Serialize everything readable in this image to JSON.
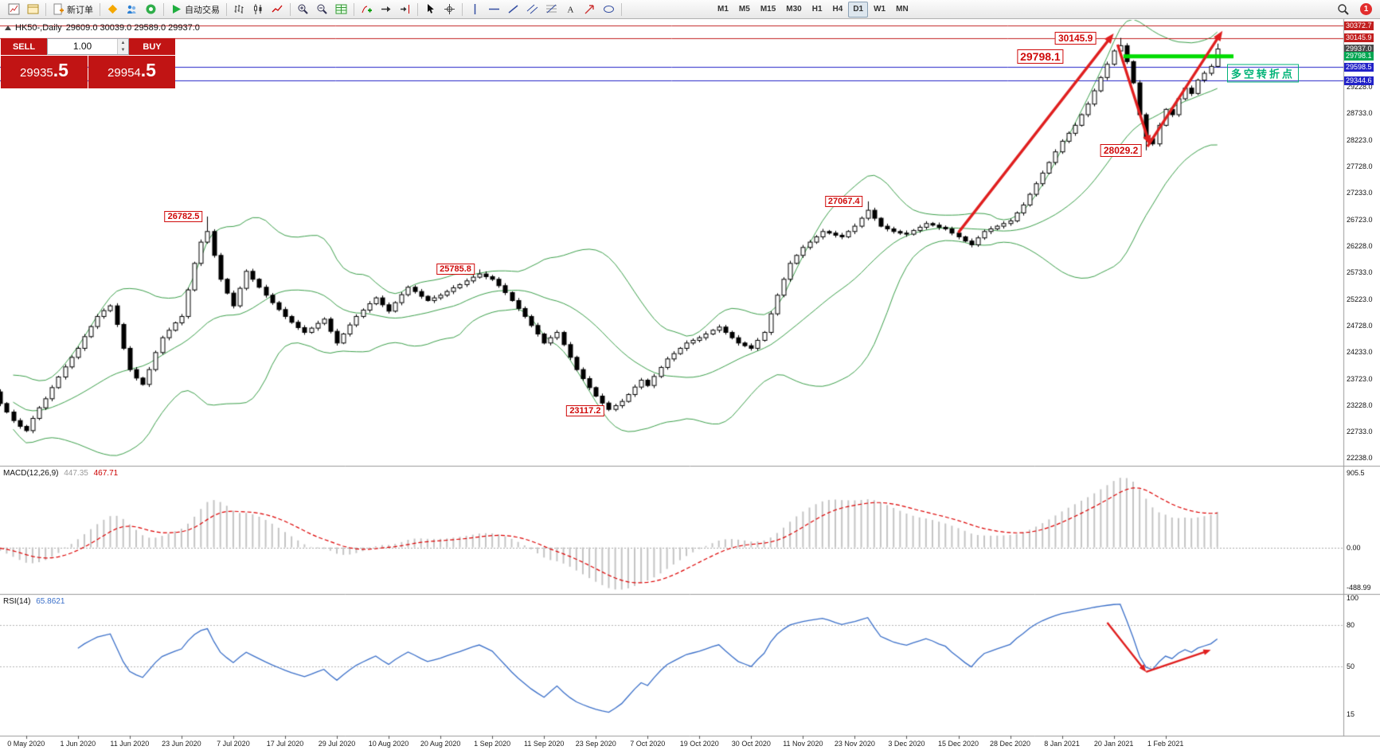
{
  "toolbar": {
    "new_order_label": "新订单",
    "algo_trading_label": "自动交易",
    "timeframes": [
      "M1",
      "M5",
      "M15",
      "M30",
      "H1",
      "H4",
      "D1",
      "W1",
      "MN"
    ],
    "active_timeframe": "D1",
    "notification_count": "1",
    "groups": [
      {
        "name": "charts",
        "items": [
          {
            "icon": "new-chart"
          },
          {
            "icon": "chart-profiles"
          }
        ]
      },
      {
        "name": "order",
        "items": [
          {
            "icon": "new-order",
            "label": "新订单",
            "name": "new-order-button"
          }
        ]
      },
      {
        "name": "services",
        "items": [
          {
            "icon": "market"
          },
          {
            "icon": "community"
          },
          {
            "icon": "news"
          }
        ]
      },
      {
        "name": "algo",
        "items": [
          {
            "icon": "algo-play",
            "label": "自动交易",
            "name": "algo-trading-button"
          }
        ]
      },
      {
        "name": "chart-modes",
        "items": [
          {
            "icon": "bars-mode"
          },
          {
            "icon": "candles-mode"
          },
          {
            "icon": "line-mode"
          }
        ]
      },
      {
        "name": "zoom",
        "items": [
          {
            "icon": "zoom-in"
          },
          {
            "icon": "zoom-out"
          },
          {
            "icon": "market-depth"
          }
        ]
      },
      {
        "name": "scroll",
        "items": [
          {
            "icon": "indicators-add"
          },
          {
            "icon": "auto-scroll"
          },
          {
            "icon": "chart-shift"
          }
        ]
      },
      {
        "name": "pointer",
        "items": [
          {
            "icon": "cursor"
          },
          {
            "icon": "crosshair"
          }
        ]
      },
      {
        "name": "objects",
        "items": [
          {
            "icon": "vertical-line"
          },
          {
            "icon": "horizontal-line"
          },
          {
            "icon": "trendline"
          },
          {
            "icon": "channel"
          },
          {
            "icon": "fibonacci"
          },
          {
            "icon": "text-label"
          },
          {
            "icon": "arrows-object"
          },
          {
            "icon": "shapes"
          }
        ]
      },
      {
        "name": "timeframes",
        "items": []
      }
    ]
  },
  "trade_panel": {
    "sell_label": "SELL",
    "buy_label": "BUY",
    "volume": "1.00",
    "sell_price_main": "29935",
    "sell_price_frac": ".5",
    "buy_price_main": "29954",
    "buy_price_frac": ".5"
  },
  "chart_header": {
    "symbol": "HK50-,Daily",
    "ohlc": "29609.0 30039.0 29589.0 29937.0"
  },
  "chart_data": {
    "type": "candlestick",
    "symbol": "HK50",
    "timeframe": "Daily",
    "first_open": 23750,
    "closes": [
      23650,
      23480,
      23260,
      23100,
      22940,
      22830,
      22750,
      22980,
      23180,
      23350,
      23560,
      23760,
      23950,
      24130,
      24300,
      24520,
      24710,
      24900,
      25010,
      25100,
      24750,
      24300,
      23900,
      23740,
      23620,
      23900,
      24220,
      24500,
      24640,
      24780,
      24900,
      25400,
      25900,
      26300,
      26500,
      26050,
      25600,
      25340,
      25100,
      25430,
      25750,
      25600,
      25450,
      25300,
      25160,
      25030,
      24900,
      24790,
      24690,
      24600,
      24680,
      24770,
      24850,
      24620,
      24400,
      24570,
      24740,
      24900,
      25020,
      25140,
      25250,
      25120,
      25000,
      25160,
      25310,
      25450,
      25370,
      25280,
      25200,
      25250,
      25300,
      25370,
      25440,
      25500,
      25570,
      25640,
      25700,
      25650,
      25600,
      25480,
      25350,
      25200,
      25050,
      24900,
      24730,
      24570,
      24400,
      24500,
      24600,
      24370,
      24130,
      23900,
      23730,
      23560,
      23400,
      23270,
      23150,
      23220,
      23300,
      23430,
      23570,
      23700,
      23600,
      23770,
      23940,
      24100,
      24200,
      24300,
      24400,
      24450,
      24500,
      24570,
      24640,
      24700,
      24600,
      24500,
      24400,
      24350,
      24300,
      24450,
      24600,
      24950,
      25300,
      25600,
      25900,
      26050,
      26200,
      26300,
      26400,
      26500,
      26470,
      26430,
      26400,
      26500,
      26600,
      26750,
      26900,
      26750,
      26600,
      26550,
      26500,
      26470,
      26450,
      26520,
      26580,
      26650,
      26620,
      26580,
      26550,
      26470,
      26400,
      26320,
      26250,
      26380,
      26500,
      26550,
      26600,
      26650,
      26700,
      26850,
      27000,
      27200,
      27400,
      27600,
      27800,
      28000,
      28200,
      28350,
      28500,
      28700,
      28900,
      29150,
      29400,
      29650,
      29900,
      30000,
      29700,
      29300,
      28700,
      28250,
      28150,
      28500,
      28800,
      28700,
      29000,
      29200,
      29100,
      29350,
      29480,
      29609,
      29937
    ],
    "extremes": {
      "34": {
        "high": 26782.5
      },
      "76": {
        "high": 25785.8
      },
      "96": {
        "low": 23117.2
      },
      "136": {
        "high": 27067.4
      },
      "175": {
        "high": 30145.9
      },
      "179": {
        "low": 28029.2
      },
      "190": {
        "high": 30039.0,
        "low": 29589.0
      }
    },
    "price_axis": {
      "min": 22238.0,
      "max": 30500.0,
      "ticks": [
        "29228.0",
        "28733.0",
        "28223.0",
        "27728.0",
        "27233.0",
        "26723.0",
        "26228.0",
        "25733.0",
        "25223.0",
        "24728.0",
        "24233.0",
        "23723.0",
        "23228.0",
        "22733.0",
        "22238.0"
      ]
    },
    "highlight_levels": [
      {
        "price": 30372.7,
        "label": "30372.7",
        "color": "#c21f1f",
        "line": true
      },
      {
        "price": 30145.9,
        "label": "30145.9",
        "color": "#c21f1f",
        "line": true
      },
      {
        "price": 29937.0,
        "label": "29937.0",
        "color": "#4a4a4a",
        "line": false
      },
      {
        "price": 29798.1,
        "label": "29798.1",
        "color": "#00a651",
        "line": false
      },
      {
        "price": 29598.5,
        "label": "29598.5",
        "color": "#2222c8",
        "line": true
      },
      {
        "price": 29344.6,
        "label": "29344.6",
        "color": "#2222c8",
        "line": true
      }
    ],
    "time_labels": [
      "0 May 2020",
      "1 Jun 2020",
      "11 Jun 2020",
      "23 Jun 2020",
      "7 Jul 2020",
      "17 Jul 2020",
      "29 Jul 2020",
      "10 Aug 2020",
      "20 Aug 2020",
      "1 Sep 2020",
      "11 Sep 2020",
      "23 Sep 2020",
      "7 Oct 2020",
      "19 Oct 2020",
      "30 Oct 2020",
      "11 Nov 2020",
      "23 Nov 2020",
      "3 Dec 2020",
      "15 Dec 2020",
      "28 Dec 2020",
      "8 Jan 2021",
      "20 Jan 2021",
      "1 Feb 2021"
    ],
    "colors": {
      "bollinger": "#3ca04b",
      "candle_up": "#ffffff",
      "candle_down": "#000000",
      "candle_outline": "#000000",
      "arrow": "#e01f1f",
      "support_segment": "#00dc00",
      "tag": "#cf0a0a"
    },
    "annotations": {
      "price_tags": [
        {
          "text": "26782.5",
          "i": 34,
          "price": 26782.5,
          "size": "s"
        },
        {
          "text": "25785.8",
          "i": 76,
          "price": 25785.8,
          "size": "s"
        },
        {
          "text": "23117.2",
          "i": 96,
          "price": 23117.2,
          "size": "s"
        },
        {
          "text": "27067.4",
          "i": 136,
          "price": 27067.4,
          "size": "s"
        },
        {
          "text": "28029.2",
          "i": 179,
          "price": 28029.2,
          "size": "m"
        },
        {
          "text": "29798.1",
          "i": 167,
          "price": 29798.1,
          "size": "l"
        },
        {
          "text": "30145.9",
          "i": 172,
          "price": 30145.9,
          "size": "m"
        }
      ],
      "trend_arrows": [
        {
          "i1": 150,
          "p1": 26480,
          "i2": 174,
          "p2": 30230
        },
        {
          "i1": 174.6,
          "p1": 30020,
          "i2": 179.6,
          "p2": 28120
        },
        {
          "i1": 179.2,
          "p1": 28100,
          "i2": 190.8,
          "p2": 30280
        }
      ],
      "support_segment": {
        "i1": 175.5,
        "i2": 192.5,
        "price": 29798.1
      },
      "turning_point_label": {
        "text": "多空转折点",
        "i": 191.5,
        "price": 29480,
        "color": "#00b377"
      },
      "rsi_arrows": [
        {
          "i1": 173,
          "v1": 82,
          "i2": 179,
          "v2": 46
        },
        {
          "i1": 179,
          "v1": 46,
          "i2": 189,
          "v2": 62
        }
      ]
    }
  },
  "macd_panel": {
    "label": "MACD(12,26,9)",
    "value_main": "447.35",
    "value_signal": "467.71",
    "axis": [
      "905.5",
      "0.00",
      "-488.99"
    ],
    "histogram_color": "#c4c4c4",
    "signal_color": "#dd0000"
  },
  "rsi_panel": {
    "label": "RSI(14)",
    "value": "65.8621",
    "axis": [
      "100",
      "80",
      "50",
      "15"
    ],
    "levels": [
      80,
      50
    ],
    "line_color": "#3a6fc9"
  }
}
